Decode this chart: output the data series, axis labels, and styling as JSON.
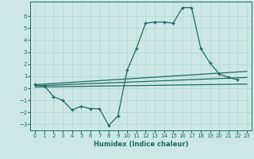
{
  "xlabel": "Humidex (Indice chaleur)",
  "bg_color": "#cde8e4",
  "line_color": "#1a6b62",
  "grid_color": "#aed4cf",
  "xlim": [
    -0.5,
    23.5
  ],
  "ylim": [
    -3.5,
    7.2
  ],
  "yticks": [
    -3,
    -2,
    -1,
    0,
    1,
    2,
    3,
    4,
    5,
    6
  ],
  "xticks": [
    0,
    1,
    2,
    3,
    4,
    5,
    6,
    7,
    8,
    9,
    10,
    11,
    12,
    13,
    14,
    15,
    16,
    17,
    18,
    19,
    20,
    21,
    22,
    23
  ],
  "main_x": [
    0,
    1,
    2,
    3,
    4,
    5,
    6,
    7,
    8,
    9,
    10,
    11,
    12,
    13,
    14,
    15,
    16,
    17,
    18,
    19,
    20,
    21,
    22
  ],
  "main_y": [
    0.3,
    0.2,
    -0.7,
    -1.0,
    -1.8,
    -1.5,
    -1.7,
    -1.7,
    -3.1,
    -2.3,
    1.5,
    3.3,
    5.4,
    5.5,
    5.5,
    5.4,
    6.7,
    6.7,
    3.3,
    2.1,
    1.2,
    0.9,
    0.7
  ],
  "ref_lines": [
    {
      "x0": 0,
      "y0": 0.3,
      "x1": 23,
      "y1": 1.4
    },
    {
      "x0": 0,
      "y0": 0.2,
      "x1": 23,
      "y1": 0.9
    },
    {
      "x0": 0,
      "y0": 0.1,
      "x1": 23,
      "y1": 0.35
    }
  ]
}
